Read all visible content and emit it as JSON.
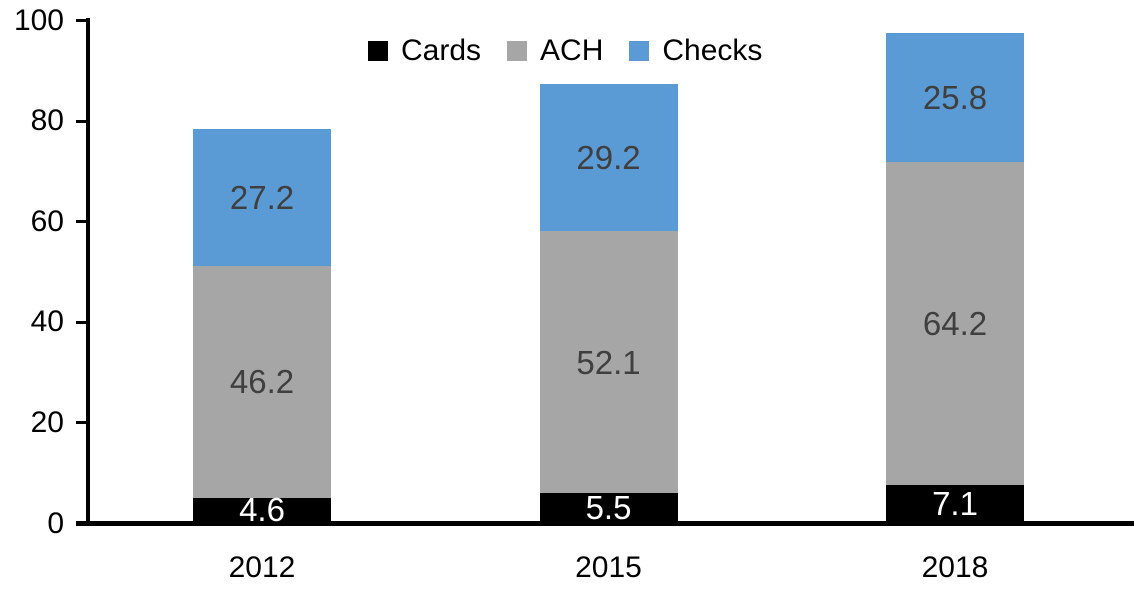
{
  "chart_data": {
    "type": "bar",
    "stacked": true,
    "title": "",
    "xlabel": "",
    "ylabel": "",
    "grid": false,
    "categories": [
      "2012",
      "2015",
      "2018"
    ],
    "series": [
      {
        "name": "Cards",
        "color": "#000000",
        "label_color": "#ffffff",
        "values": [
          4.6,
          5.5,
          7.1
        ]
      },
      {
        "name": "ACH",
        "color": "#A6A6A6",
        "label_color": "#3F3F3F",
        "values": [
          46.2,
          52.1,
          64.2
        ]
      },
      {
        "name": "Checks",
        "color": "#5B9BD5",
        "label_color": "#3F3F3F",
        "values": [
          27.2,
          29.2,
          25.8
        ]
      }
    ],
    "totals": [
      78.0,
      86.8,
      97.1
    ],
    "y_axis": {
      "min": 0,
      "max": 100,
      "tick_step": 20,
      "tick_labels": [
        "0",
        "20",
        "40",
        "60",
        "80",
        "100"
      ]
    },
    "legend": {
      "position": "top",
      "entries": [
        "Cards",
        "ACH",
        "Checks"
      ]
    },
    "colors": {
      "axis": "#000000",
      "background": "#ffffff",
      "inside_label_dark": "#3F3F3F",
      "inside_label_light": "#ffffff"
    }
  }
}
